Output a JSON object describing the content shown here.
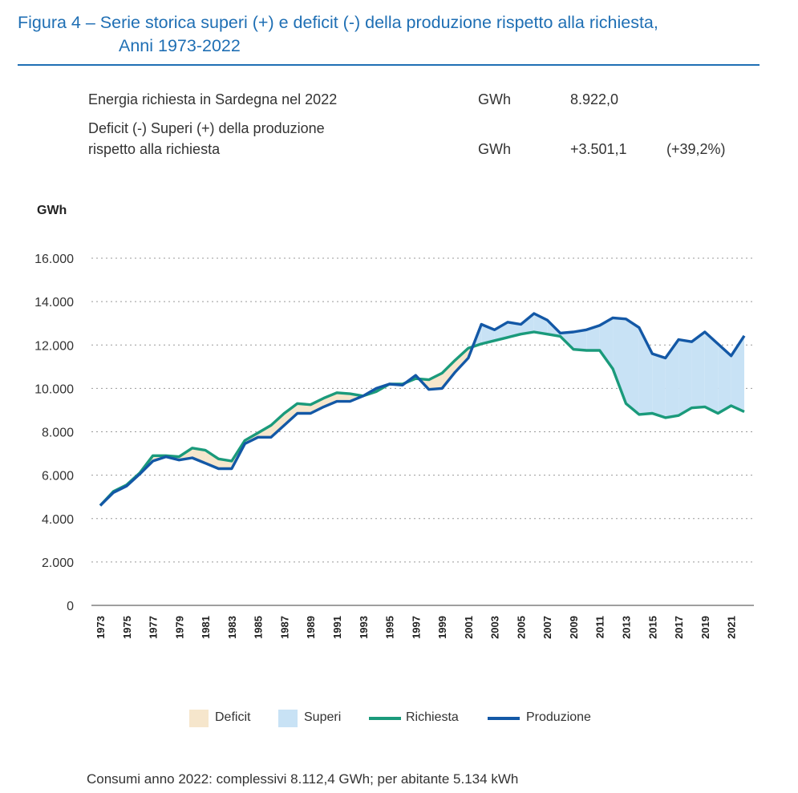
{
  "header": {
    "title_line1": "Figura 4 – Serie storica superi (+) e deficit (-) della produzione rispetto alla richiesta,",
    "title_line2": "Anni 1973-2022"
  },
  "info": {
    "row1_label": "Energia richiesta in Sardegna nel 2022",
    "row1_unit": "GWh",
    "row1_value": "8.922,0",
    "row2_label_a": "Deficit (-) Superi (+) della produzione",
    "row2_label_b": "rispetto alla richiesta",
    "row2_unit": "GWh",
    "row2_value": "+3.501,1",
    "row2_pct": "(+39,2%)"
  },
  "footer": "Consumi anno 2022: complessivi 8.112,4 GWh; per abitante 5.134 kWh",
  "colors": {
    "title": "#1f6fb4",
    "richiesta": "#1a9a7b",
    "produzione": "#1358a6",
    "deficit_fill": "#f6e6cc",
    "superi_fill": "#c8e2f5",
    "grid": "#999999"
  },
  "chart_data": {
    "type": "area",
    "ylabel": "GWh",
    "ylim": [
      0,
      16000
    ],
    "yticks": [
      0,
      2000,
      4000,
      6000,
      8000,
      10000,
      12000,
      14000,
      16000
    ],
    "ytick_labels": [
      "0",
      "2.000",
      "4.000",
      "6.000",
      "8.000",
      "10.000",
      "12.000",
      "14.000",
      "16.000"
    ],
    "xtick_labels": [
      "1973",
      "1975",
      "1977",
      "1979",
      "1981",
      "1983",
      "1985",
      "1987",
      "1989",
      "1991",
      "1993",
      "1995",
      "1997",
      "1999",
      "2001",
      "2003",
      "2005",
      "2007",
      "2009",
      "2011",
      "2013",
      "2015",
      "2017",
      "2019",
      "2021"
    ],
    "grid": true,
    "legend": [
      "Deficit",
      "Superi",
      "Richiesta",
      "Produzione"
    ],
    "legend_position": "bottom",
    "x": [
      1973,
      1974,
      1975,
      1976,
      1977,
      1978,
      1979,
      1980,
      1981,
      1982,
      1983,
      1984,
      1985,
      1986,
      1987,
      1988,
      1989,
      1990,
      1991,
      1992,
      1993,
      1994,
      1995,
      1996,
      1997,
      1998,
      1999,
      2000,
      2001,
      2002,
      2003,
      2004,
      2005,
      2006,
      2007,
      2008,
      2009,
      2010,
      2011,
      2012,
      2013,
      2014,
      2015,
      2016,
      2017,
      2018,
      2019,
      2020,
      2021,
      2022
    ],
    "series": [
      {
        "name": "Richiesta",
        "values": [
          4600,
          5250,
          5550,
          6100,
          6900,
          6900,
          6850,
          7250,
          7150,
          6750,
          6650,
          7600,
          7950,
          8300,
          8850,
          9300,
          9250,
          9550,
          9800,
          9750,
          9650,
          9850,
          10200,
          10200,
          10450,
          10400,
          10700,
          11300,
          11850,
          12050,
          12200,
          12350,
          12500,
          12600,
          12500,
          12400,
          11800,
          11750,
          11750,
          10900,
          9300,
          8800,
          8850,
          8650,
          8750,
          9100,
          9150,
          8850,
          9200,
          8922
        ]
      },
      {
        "name": "Produzione",
        "values": [
          4600,
          5200,
          5500,
          6050,
          6650,
          6850,
          6700,
          6800,
          6550,
          6300,
          6300,
          7450,
          7750,
          7750,
          8300,
          8850,
          8850,
          9150,
          9400,
          9400,
          9650,
          10000,
          10200,
          10150,
          10600,
          9950,
          10000,
          10750,
          11400,
          12950,
          12700,
          13050,
          12950,
          13450,
          13150,
          12550,
          12600,
          12700,
          12900,
          13250,
          13200,
          12800,
          11600,
          11400,
          12250,
          12150,
          12600,
          12050,
          11500,
          12423
        ]
      }
    ]
  }
}
